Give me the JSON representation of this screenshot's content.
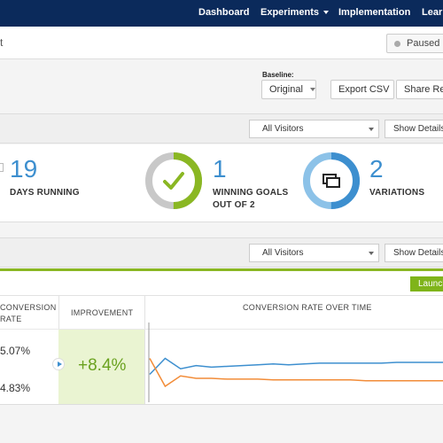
{
  "nav": {
    "items": [
      "Dashboard",
      "Experiments",
      "Implementation",
      "Learn"
    ]
  },
  "title": {
    "fragment": "t"
  },
  "status": {
    "label": "Paused"
  },
  "baseline": {
    "label": "Baseline:",
    "selected": "Original",
    "export_label": "Export CSV",
    "share_label": "Share Report"
  },
  "filters": {
    "segment": "All Visitors",
    "details_label": "Show Details"
  },
  "stats": {
    "days": {
      "value": "19",
      "label": "DAYS RUNNING"
    },
    "goals": {
      "value": "1",
      "label_line1": "WINNING GOALS",
      "label_line2": "OUT OF 2",
      "fraction": 0.5
    },
    "variations": {
      "value": "2",
      "label": "VARIATIONS"
    }
  },
  "launch": {
    "label": "Launch"
  },
  "results": {
    "col_conversion_line1": "CONVERSION",
    "col_conversion_line2": "RATE",
    "col_improvement": "IMPROVEMENT",
    "col_chart": "CONVERSION RATE OVER TIME",
    "rates": [
      "5.07%",
      "4.83%"
    ],
    "improvement": "+8.4%"
  },
  "colors": {
    "nav_bg": "#0b2a5b",
    "accent_blue": "#3d8fcf",
    "accent_green": "#8ab723",
    "series_orange": "#f28c38"
  },
  "chart_data": {
    "type": "line",
    "title": "CONVERSION RATE OVER TIME",
    "series": [
      {
        "values": [
          0.0505,
          0.0525,
          0.0512,
          0.0516,
          0.0514,
          0.0515,
          0.0516,
          0.0517,
          0.0518,
          0.0517,
          0.0518,
          0.0519,
          0.0519,
          0.0519,
          0.0519,
          0.0519,
          0.052,
          0.052,
          0.052,
          0.052
        ],
        "color": "#3d8fcf"
      },
      {
        "values": [
          0.0525,
          0.049,
          0.0503,
          0.05,
          0.05,
          0.0499,
          0.0499,
          0.0499,
          0.0498,
          0.0498,
          0.0498,
          0.0498,
          0.0498,
          0.0498,
          0.0497,
          0.0497,
          0.0497,
          0.0497,
          0.0497,
          0.0497
        ],
        "color": "#f28c38"
      }
    ],
    "ylim": [
      0.047,
      0.057
    ]
  }
}
